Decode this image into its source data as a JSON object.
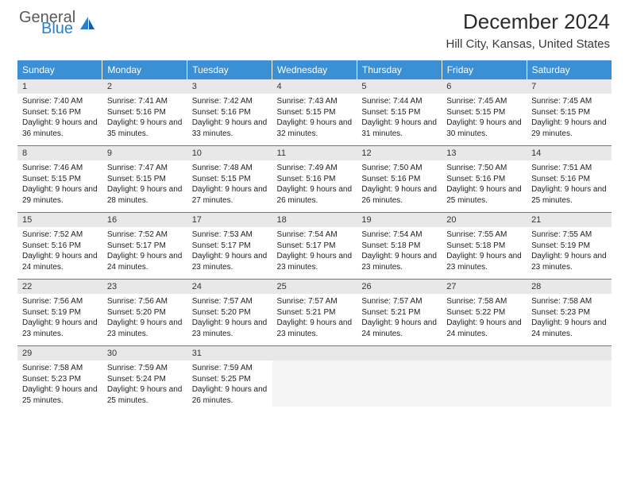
{
  "logo": {
    "general": "General",
    "blue": "Blue"
  },
  "title": "December 2024",
  "location": "Hill City, Kansas, United States",
  "colors": {
    "header_bg": "#3b8fd4",
    "header_text": "#ffffff",
    "daynum_bg": "#e8e8e8",
    "border": "#4a7fb0",
    "logo_gray": "#5a5a5a",
    "logo_blue": "#2a7fc9"
  },
  "weekdays": [
    "Sunday",
    "Monday",
    "Tuesday",
    "Wednesday",
    "Thursday",
    "Friday",
    "Saturday"
  ],
  "days": [
    {
      "n": 1,
      "sr": "7:40 AM",
      "ss": "5:16 PM",
      "dl": "9 hours and 36 minutes."
    },
    {
      "n": 2,
      "sr": "7:41 AM",
      "ss": "5:16 PM",
      "dl": "9 hours and 35 minutes."
    },
    {
      "n": 3,
      "sr": "7:42 AM",
      "ss": "5:16 PM",
      "dl": "9 hours and 33 minutes."
    },
    {
      "n": 4,
      "sr": "7:43 AM",
      "ss": "5:15 PM",
      "dl": "9 hours and 32 minutes."
    },
    {
      "n": 5,
      "sr": "7:44 AM",
      "ss": "5:15 PM",
      "dl": "9 hours and 31 minutes."
    },
    {
      "n": 6,
      "sr": "7:45 AM",
      "ss": "5:15 PM",
      "dl": "9 hours and 30 minutes."
    },
    {
      "n": 7,
      "sr": "7:45 AM",
      "ss": "5:15 PM",
      "dl": "9 hours and 29 minutes."
    },
    {
      "n": 8,
      "sr": "7:46 AM",
      "ss": "5:15 PM",
      "dl": "9 hours and 29 minutes."
    },
    {
      "n": 9,
      "sr": "7:47 AM",
      "ss": "5:15 PM",
      "dl": "9 hours and 28 minutes."
    },
    {
      "n": 10,
      "sr": "7:48 AM",
      "ss": "5:15 PM",
      "dl": "9 hours and 27 minutes."
    },
    {
      "n": 11,
      "sr": "7:49 AM",
      "ss": "5:16 PM",
      "dl": "9 hours and 26 minutes."
    },
    {
      "n": 12,
      "sr": "7:50 AM",
      "ss": "5:16 PM",
      "dl": "9 hours and 26 minutes."
    },
    {
      "n": 13,
      "sr": "7:50 AM",
      "ss": "5:16 PM",
      "dl": "9 hours and 25 minutes."
    },
    {
      "n": 14,
      "sr": "7:51 AM",
      "ss": "5:16 PM",
      "dl": "9 hours and 25 minutes."
    },
    {
      "n": 15,
      "sr": "7:52 AM",
      "ss": "5:16 PM",
      "dl": "9 hours and 24 minutes."
    },
    {
      "n": 16,
      "sr": "7:52 AM",
      "ss": "5:17 PM",
      "dl": "9 hours and 24 minutes."
    },
    {
      "n": 17,
      "sr": "7:53 AM",
      "ss": "5:17 PM",
      "dl": "9 hours and 23 minutes."
    },
    {
      "n": 18,
      "sr": "7:54 AM",
      "ss": "5:17 PM",
      "dl": "9 hours and 23 minutes."
    },
    {
      "n": 19,
      "sr": "7:54 AM",
      "ss": "5:18 PM",
      "dl": "9 hours and 23 minutes."
    },
    {
      "n": 20,
      "sr": "7:55 AM",
      "ss": "5:18 PM",
      "dl": "9 hours and 23 minutes."
    },
    {
      "n": 21,
      "sr": "7:55 AM",
      "ss": "5:19 PM",
      "dl": "9 hours and 23 minutes."
    },
    {
      "n": 22,
      "sr": "7:56 AM",
      "ss": "5:19 PM",
      "dl": "9 hours and 23 minutes."
    },
    {
      "n": 23,
      "sr": "7:56 AM",
      "ss": "5:20 PM",
      "dl": "9 hours and 23 minutes."
    },
    {
      "n": 24,
      "sr": "7:57 AM",
      "ss": "5:20 PM",
      "dl": "9 hours and 23 minutes."
    },
    {
      "n": 25,
      "sr": "7:57 AM",
      "ss": "5:21 PM",
      "dl": "9 hours and 23 minutes."
    },
    {
      "n": 26,
      "sr": "7:57 AM",
      "ss": "5:21 PM",
      "dl": "9 hours and 24 minutes."
    },
    {
      "n": 27,
      "sr": "7:58 AM",
      "ss": "5:22 PM",
      "dl": "9 hours and 24 minutes."
    },
    {
      "n": 28,
      "sr": "7:58 AM",
      "ss": "5:23 PM",
      "dl": "9 hours and 24 minutes."
    },
    {
      "n": 29,
      "sr": "7:58 AM",
      "ss": "5:23 PM",
      "dl": "9 hours and 25 minutes."
    },
    {
      "n": 30,
      "sr": "7:59 AM",
      "ss": "5:24 PM",
      "dl": "9 hours and 25 minutes."
    },
    {
      "n": 31,
      "sr": "7:59 AM",
      "ss": "5:25 PM",
      "dl": "9 hours and 26 minutes."
    }
  ],
  "labels": {
    "sunrise": "Sunrise:",
    "sunset": "Sunset:",
    "daylight": "Daylight:"
  },
  "start_weekday": 0,
  "total_cells": 35
}
